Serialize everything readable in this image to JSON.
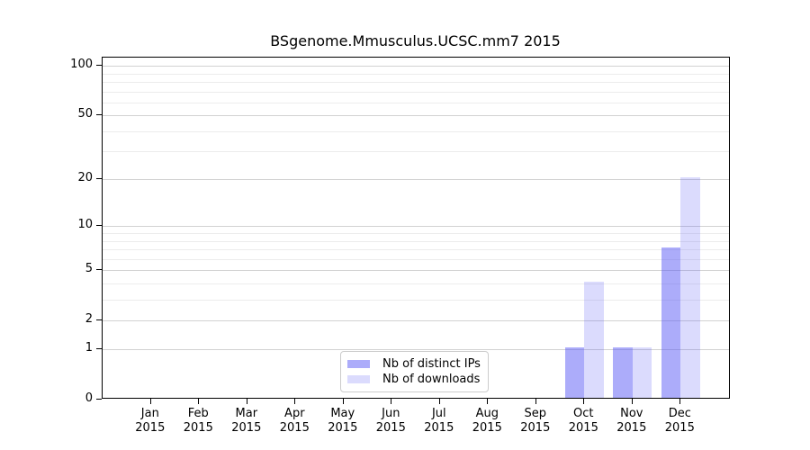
{
  "title": "BSgenome.Mmusculus.UCSC.mm7 2015",
  "chart_data": {
    "type": "bar",
    "title": "BSgenome.Mmusculus.UCSC.mm7 2015",
    "xlabel": "",
    "ylabel": "",
    "categories": [
      "Jan",
      "Feb",
      "Mar",
      "Apr",
      "May",
      "Jun",
      "Jul",
      "Aug",
      "Sep",
      "Oct",
      "Nov",
      "Dec"
    ],
    "category_year": "2015",
    "series": [
      {
        "name": "Nb of distinct IPs",
        "color": "rgba(85,85,245,0.49)",
        "values": [
          0,
          0,
          0,
          0,
          0,
          0,
          0,
          0,
          0,
          1,
          1,
          7
        ]
      },
      {
        "name": "Nb of downloads",
        "color": "rgba(85,85,245,0.21)",
        "values": [
          0,
          0,
          0,
          0,
          0,
          0,
          0,
          0,
          0,
          4,
          1,
          20
        ]
      }
    ],
    "y_axis": {
      "scale": "log10(1+x)",
      "tick_labels": [
        0,
        1,
        2,
        5,
        10,
        20,
        50,
        100
      ],
      "major_gridlines": [
        1,
        2,
        5,
        10,
        20,
        50,
        100
      ],
      "minor_gridlines": [
        3,
        4,
        6,
        7,
        8,
        9,
        30,
        40,
        60,
        70,
        80,
        90
      ],
      "range_max": 112
    },
    "grid": true,
    "legend": {
      "position": "bottom-center"
    },
    "style": {
      "major_grid_color": "#d2d2d2",
      "minor_grid_color": "#ececec",
      "axis_color": "#000000",
      "background": "#ffffff"
    }
  }
}
